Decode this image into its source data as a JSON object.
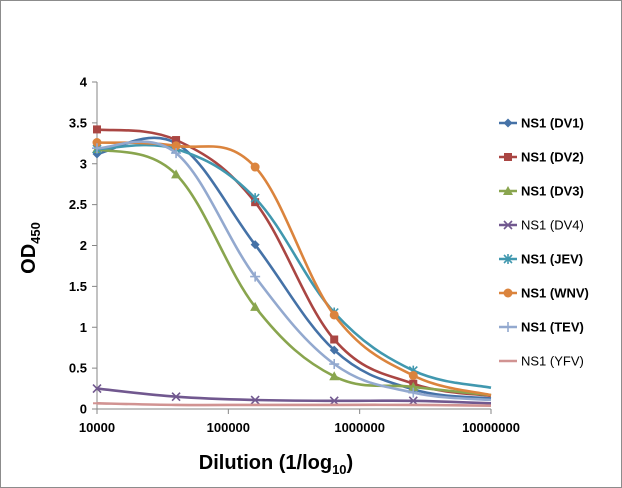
{
  "chart_data": {
    "type": "line",
    "xlabel": "Dilution (1/log",
    "xlabel_sub": "10",
    "xlabel_tail": ")",
    "ylabel": "OD",
    "ylabel_sub": "450",
    "x_scale": "log",
    "xlim": [
      10000,
      10000000
    ],
    "ylim": [
      0,
      4
    ],
    "x_ticks": [
      "10000",
      "100000",
      "1000000",
      "10000000"
    ],
    "y_ticks": [
      "0",
      "0.5",
      "1",
      "1.5",
      "2",
      "2.5",
      "3",
      "3.5",
      "4"
    ],
    "grid": false,
    "legend": "right",
    "x": [
      10000,
      40000,
      160000,
      640000,
      2560000
    ],
    "series": [
      {
        "name": "NS1 (DV1)",
        "bold": true,
        "color": "#4572A7",
        "marker": "diamond",
        "values": [
          3.12,
          3.25,
          2.01,
          0.72,
          0.24
        ],
        "end": 0.13
      },
      {
        "name": "NS1 (DV2)",
        "bold": true,
        "color": "#AA4643",
        "marker": "square",
        "values": [
          3.42,
          3.29,
          2.53,
          0.85,
          0.31
        ],
        "end": 0.16
      },
      {
        "name": "NS1 (DV3)",
        "bold": true,
        "color": "#89A54E",
        "marker": "triangle",
        "values": [
          3.18,
          2.87,
          1.25,
          0.4,
          0.27
        ],
        "end": 0.17
      },
      {
        "name": "NS1 (DV4)",
        "bold": false,
        "color": "#71588F",
        "marker": "x",
        "values": [
          0.25,
          0.15,
          0.11,
          0.1,
          0.1
        ],
        "end": 0.07
      },
      {
        "name": "NS1 (JEV)",
        "bold": true,
        "color": "#4198AF",
        "marker": "star",
        "values": [
          3.18,
          3.18,
          2.58,
          1.18,
          0.47
        ],
        "end": 0.26
      },
      {
        "name": "NS1 (WNV)",
        "bold": true,
        "color": "#DB843D",
        "marker": "circle",
        "values": [
          3.26,
          3.22,
          2.96,
          1.15,
          0.41
        ],
        "end": 0.17
      },
      {
        "name": "NS1 (TEV)",
        "bold": true,
        "color": "#93A9CF",
        "marker": "plus",
        "values": [
          3.19,
          3.13,
          1.62,
          0.55,
          0.2
        ],
        "end": 0.11
      },
      {
        "name": "NS1 (YFV)",
        "bold": false,
        "color": "#D19392",
        "marker": "dash",
        "values": [
          0.07,
          0.05,
          0.05,
          0.05,
          0.05
        ],
        "end": 0.04
      }
    ]
  }
}
